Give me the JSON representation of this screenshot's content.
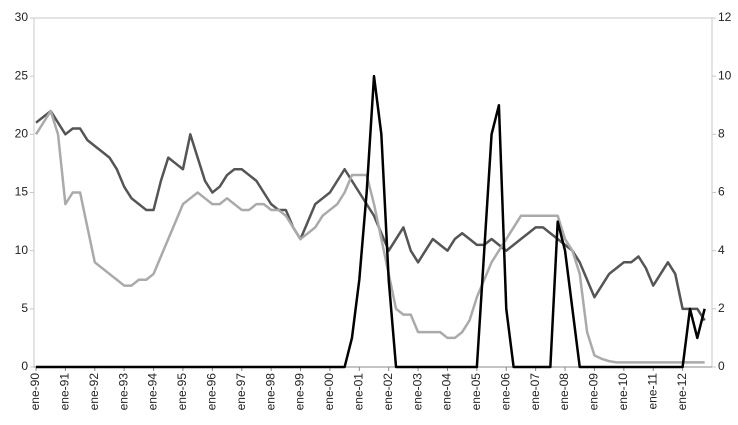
{
  "chart_data": {
    "type": "line",
    "x": [
      1990,
      1990.25,
      1990.5,
      1990.75,
      1991,
      1991.25,
      1991.5,
      1991.75,
      1992,
      1992.25,
      1992.5,
      1992.75,
      1993,
      1993.25,
      1993.5,
      1993.75,
      1994,
      1994.25,
      1994.5,
      1994.75,
      1995,
      1995.25,
      1995.5,
      1995.75,
      1996,
      1996.25,
      1996.5,
      1996.75,
      1997,
      1997.25,
      1997.5,
      1997.75,
      1998,
      1998.25,
      1998.5,
      1998.75,
      1999,
      1999.25,
      1999.5,
      1999.75,
      2000,
      2000.25,
      2000.5,
      2000.75,
      2001,
      2001.25,
      2001.5,
      2001.75,
      2002,
      2002.25,
      2002.5,
      2002.75,
      2003,
      2003.25,
      2003.5,
      2003.75,
      2004,
      2004.25,
      2004.5,
      2004.75,
      2005,
      2005.25,
      2005.5,
      2005.75,
      2006,
      2006.25,
      2006.5,
      2006.75,
      2007,
      2007.25,
      2007.5,
      2007.75,
      2008,
      2008.25,
      2008.5,
      2008.75,
      2009,
      2009.25,
      2009.5,
      2009.75,
      2010,
      2010.25,
      2010.5,
      2010.75,
      2011,
      2011.25,
      2011.5,
      2011.75,
      2012,
      2012.25,
      2012.5,
      2012.75
    ],
    "series": [
      {
        "color": "#555555",
        "values": [
          21,
          21.5,
          22,
          21,
          20,
          20.5,
          20.5,
          19.5,
          19,
          18.5,
          18,
          17,
          15.5,
          14.5,
          14,
          13.5,
          13.5,
          16,
          18,
          17.5,
          17,
          20,
          18,
          16,
          15,
          15.5,
          16.5,
          17,
          17,
          16.5,
          16,
          15,
          14,
          13.5,
          13.5,
          12,
          11,
          12.5,
          14,
          14.5,
          15,
          16,
          17,
          16,
          15,
          14,
          13,
          11.5,
          10,
          11,
          12,
          10,
          9,
          10,
          11,
          10.5,
          10,
          11,
          11.5,
          11,
          10.5,
          10.5,
          11,
          10.5,
          10,
          10.5,
          11,
          11.5,
          12,
          12,
          11.5,
          11,
          10.5,
          10,
          9,
          7.5,
          6,
          7,
          8,
          8.5,
          9,
          9,
          9.5,
          8.5,
          7,
          8,
          9,
          8,
          5,
          5,
          5,
          4
        ]
      },
      {
        "color": "#aaaaaa",
        "values": [
          20,
          21,
          22,
          20,
          14,
          15,
          15,
          12,
          9,
          8.5,
          8,
          7.5,
          7,
          7,
          7.5,
          7.5,
          8,
          9.5,
          11,
          12.5,
          14,
          14.5,
          15,
          14.5,
          14,
          14,
          14.5,
          14,
          13.5,
          13.5,
          14,
          14,
          13.5,
          13.5,
          13,
          12,
          11,
          11.5,
          12,
          13,
          13.5,
          14,
          15,
          16.5,
          16.5,
          16.5,
          14,
          11,
          8,
          5,
          4.5,
          4.5,
          3,
          3,
          3,
          3,
          2.5,
          2.5,
          3,
          4,
          6,
          7.5,
          9,
          10,
          11,
          12,
          13,
          13,
          13,
          13,
          13,
          13,
          11,
          10,
          8,
          3,
          1,
          0.7,
          0.5,
          0.4,
          0.4,
          0.4,
          0.4,
          0.4,
          0.4,
          0.4,
          0.4,
          0.4,
          0.4,
          0.4,
          0.4,
          0.4
        ]
      },
      {
        "color": "#000000",
        "axis": "y2",
        "values": [
          0,
          0,
          0,
          0,
          0,
          0,
          0,
          0,
          0,
          0,
          0,
          0,
          0,
          0,
          0,
          0,
          0,
          0,
          0,
          0,
          0,
          0,
          0,
          0,
          0,
          0,
          0,
          0,
          0,
          0,
          0,
          0,
          0,
          0,
          0,
          0,
          0,
          0,
          0,
          0,
          0,
          0,
          0,
          1,
          3,
          6,
          10,
          8,
          3,
          0,
          0,
          0,
          0,
          0,
          0,
          0,
          0,
          0,
          0,
          0,
          0,
          4,
          8,
          9,
          2,
          0,
          0,
          0,
          0,
          0,
          0,
          5,
          4,
          2,
          0,
          0,
          0,
          0,
          0,
          0,
          0,
          0,
          0,
          0,
          0,
          0,
          0,
          0,
          0,
          2,
          1,
          2
        ]
      }
    ],
    "xlim": [
      1990,
      2013
    ],
    "xticks": [
      {
        "value": 1990,
        "label": "ene-90"
      },
      {
        "value": 1991,
        "label": "ene-91"
      },
      {
        "value": 1992,
        "label": "ene-92"
      },
      {
        "value": 1993,
        "label": "ene-93"
      },
      {
        "value": 1994,
        "label": "ene-94"
      },
      {
        "value": 1995,
        "label": "ene-95"
      },
      {
        "value": 1996,
        "label": "ene-96"
      },
      {
        "value": 1997,
        "label": "ene-97"
      },
      {
        "value": 1998,
        "label": "ene-98"
      },
      {
        "value": 1999,
        "label": "ene-99"
      },
      {
        "value": 2000,
        "label": "ene-00"
      },
      {
        "value": 2001,
        "label": "ene-01"
      },
      {
        "value": 2002,
        "label": "ene-02"
      },
      {
        "value": 2003,
        "label": "ene-03"
      },
      {
        "value": 2004,
        "label": "ene-04"
      },
      {
        "value": 2005,
        "label": "ene-05"
      },
      {
        "value": 2006,
        "label": "ene-06"
      },
      {
        "value": 2007,
        "label": "ene-07"
      },
      {
        "value": 2008,
        "label": "ene-08"
      },
      {
        "value": 2009,
        "label": "ene-09"
      },
      {
        "value": 2010,
        "label": "ene-10"
      },
      {
        "value": 2011,
        "label": "ene-11"
      },
      {
        "value": 2012,
        "label": "ene-12"
      }
    ],
    "ylim": [
      0,
      30
    ],
    "yticks": [
      0,
      5,
      10,
      15,
      20,
      25,
      30
    ],
    "y2lim": [
      0,
      12
    ],
    "y2ticks": [
      0,
      2,
      4,
      6,
      8,
      10,
      12
    ]
  }
}
